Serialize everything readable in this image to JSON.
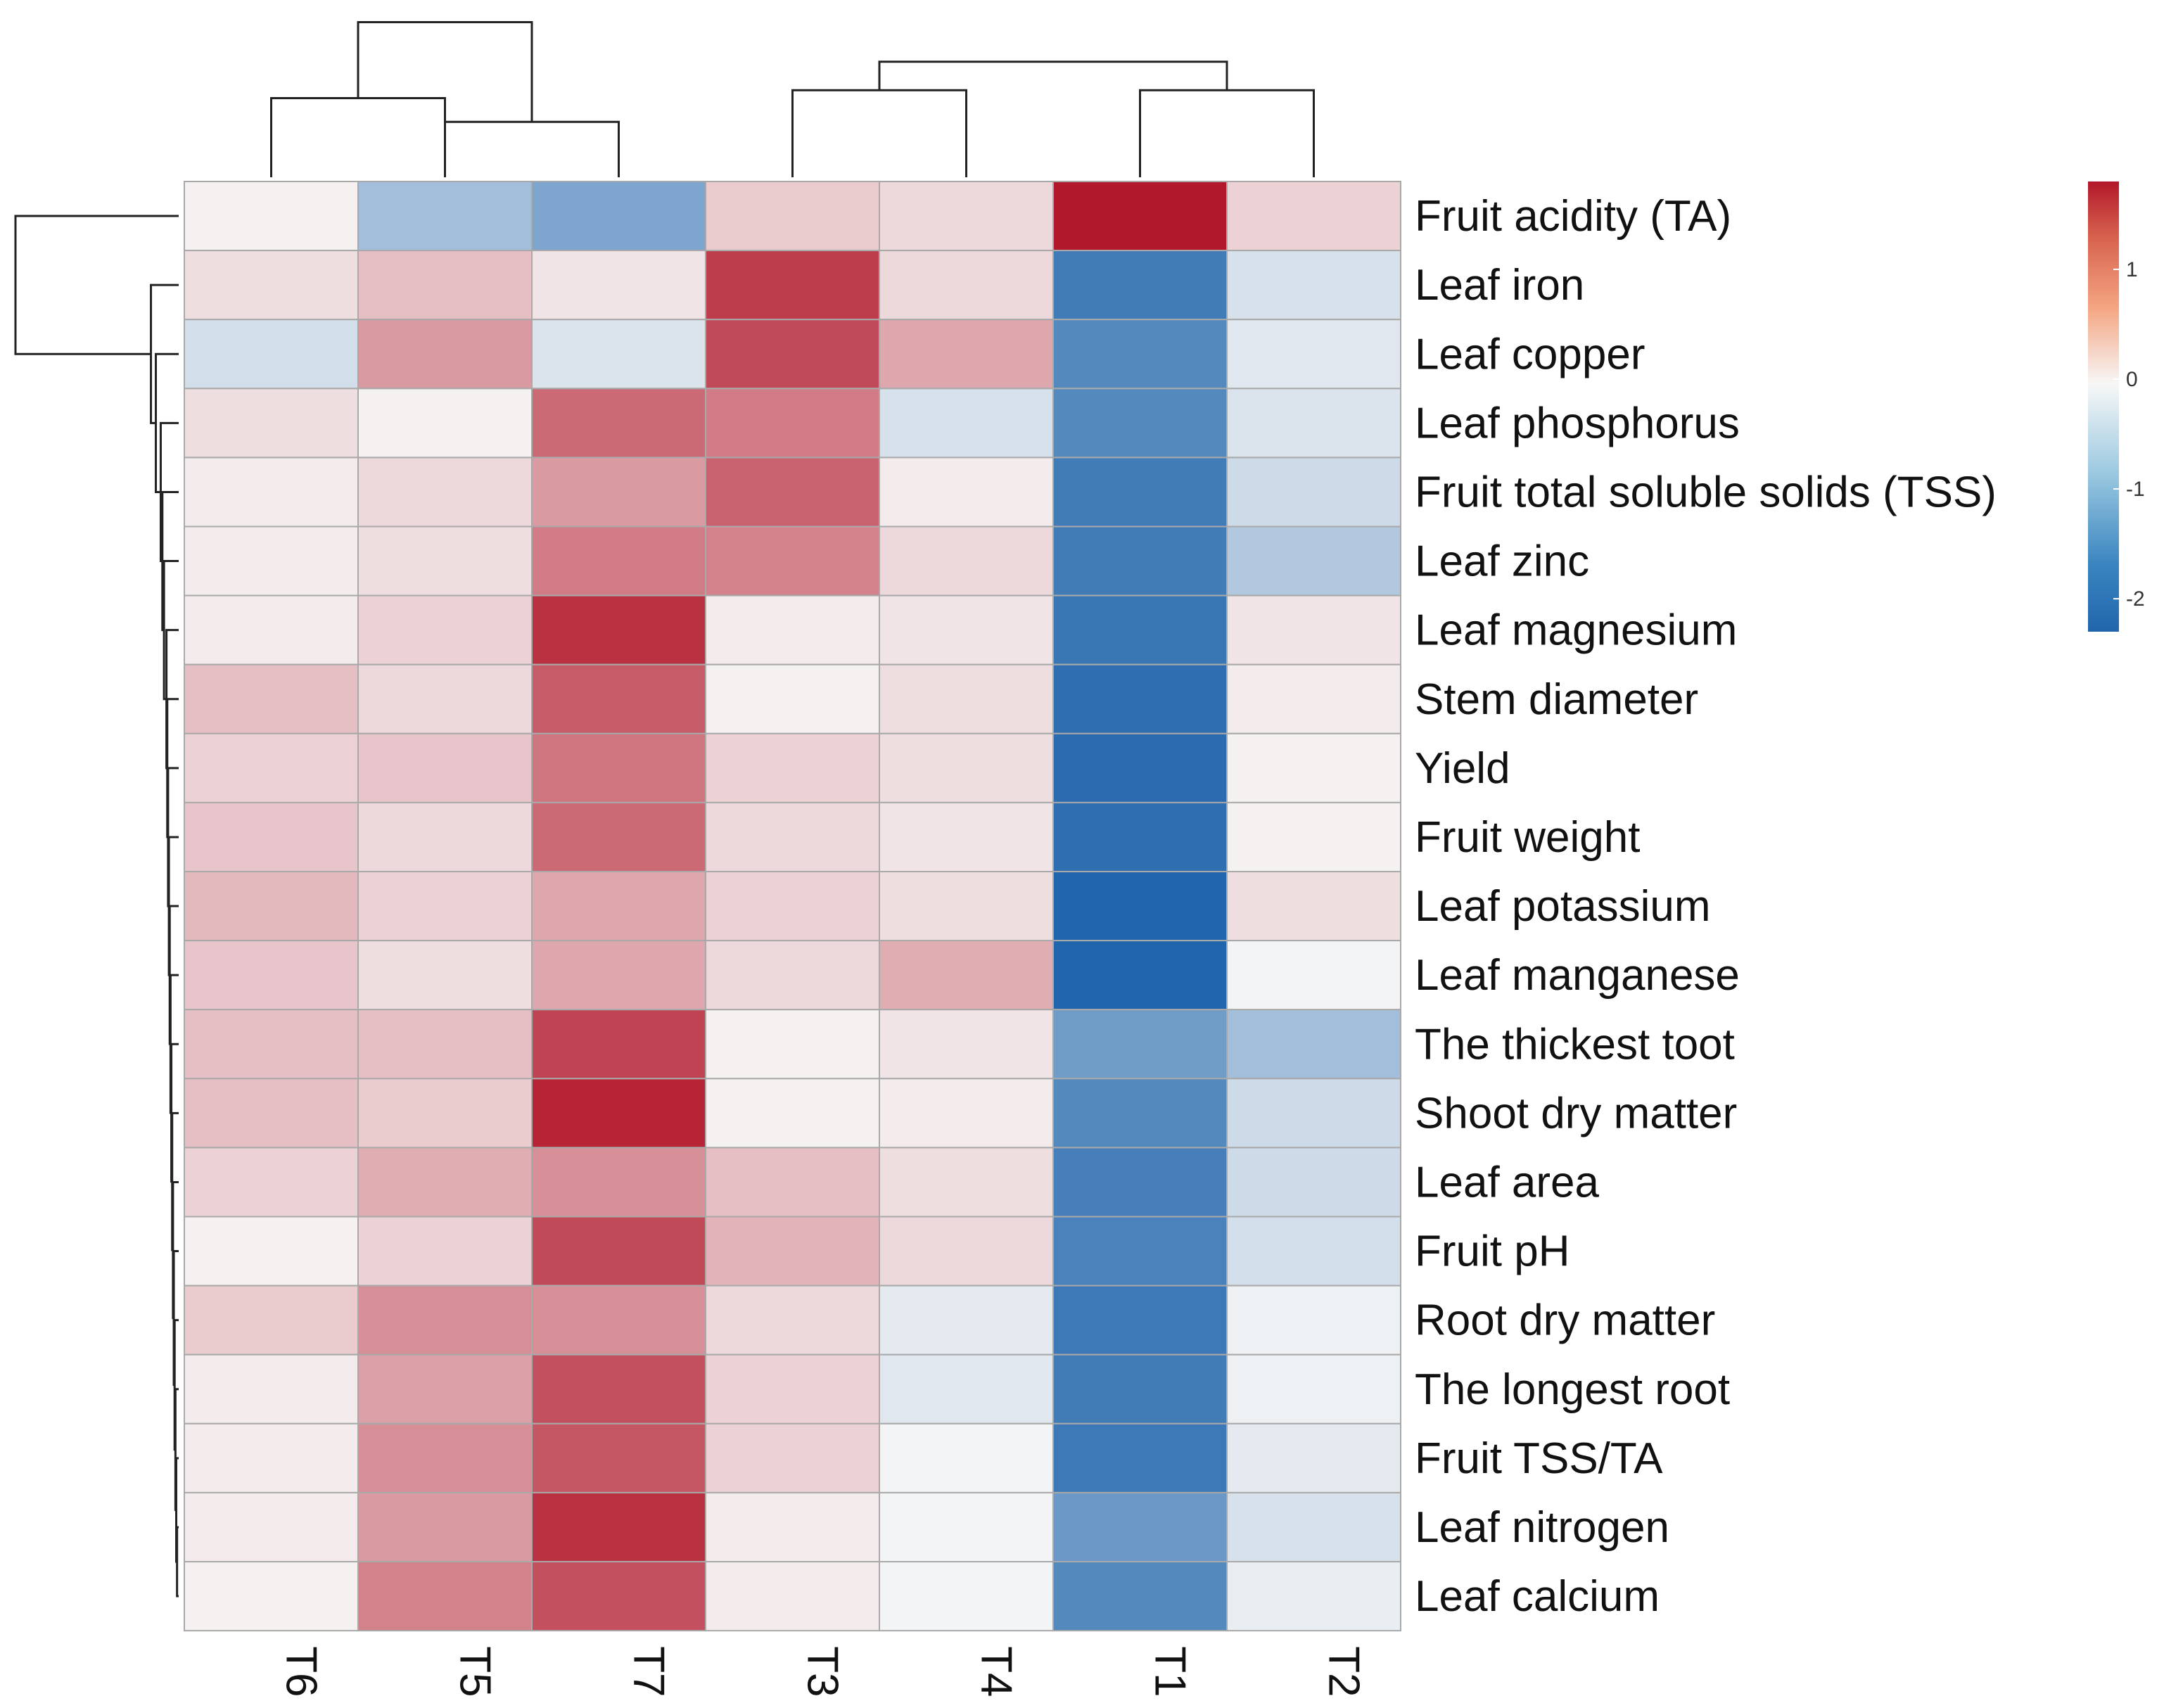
{
  "chart_data": {
    "type": "heatmap",
    "columns": [
      "T6",
      "T5",
      "T7",
      "T3",
      "T4",
      "T1",
      "T2"
    ],
    "rows": [
      "Fruit acidity (TA)",
      "Leaf iron",
      "Leaf copper",
      "Leaf phosphorus",
      "Fruit total soluble solids (TSS)",
      "Leaf zinc",
      "Leaf magnesium",
      "Stem diameter",
      "Yield",
      "Fruit weight",
      "Leaf potassium",
      "Leaf manganese",
      " The thickest toot",
      "Shoot dry matter",
      "Leaf area",
      "Fruit pH",
      "Root dry matter",
      "The longest root",
      "Fruit TSS/TA",
      "Leaf nitrogen",
      "Leaf calcium"
    ],
    "values": [
      [
        0.05,
        -0.9,
        -1.3,
        0.35,
        0.25,
        1.8,
        0.3
      ],
      [
        0.2,
        0.45,
        0.15,
        1.5,
        0.25,
        -1.95,
        -0.35
      ],
      [
        -0.4,
        0.75,
        -0.3,
        1.4,
        0.65,
        -1.75,
        -0.25
      ],
      [
        0.2,
        0.05,
        1.15,
        1.0,
        -0.35,
        -1.75,
        -0.3
      ],
      [
        0.1,
        0.25,
        0.75,
        1.2,
        0.1,
        -1.95,
        -0.45
      ],
      [
        0.1,
        0.2,
        1.0,
        0.95,
        0.25,
        -1.95,
        -0.75
      ],
      [
        0.1,
        0.3,
        1.6,
        0.1,
        0.15,
        -2.05,
        0.15
      ],
      [
        0.45,
        0.25,
        1.25,
        0.05,
        0.2,
        -2.15,
        0.1
      ],
      [
        0.3,
        0.4,
        1.05,
        0.3,
        0.2,
        -2.2,
        0.05
      ],
      [
        0.4,
        0.25,
        1.15,
        0.25,
        0.15,
        -2.15,
        0.05
      ],
      [
        0.5,
        0.3,
        0.65,
        0.3,
        0.2,
        -2.35,
        0.2
      ],
      [
        0.4,
        0.2,
        0.65,
        0.25,
        0.6,
        -2.3,
        -0.05
      ],
      [
        0.45,
        0.45,
        1.45,
        0.05,
        0.15,
        -1.45,
        -0.9
      ],
      [
        0.45,
        0.35,
        1.7,
        0.05,
        0.1,
        -1.75,
        -0.45
      ],
      [
        0.3,
        0.6,
        0.85,
        0.45,
        0.2,
        -1.9,
        -0.45
      ],
      [
        0.05,
        0.3,
        1.4,
        0.55,
        0.25,
        -1.85,
        -0.4
      ],
      [
        0.35,
        0.85,
        0.85,
        0.25,
        -0.2,
        -2.0,
        -0.1
      ],
      [
        0.1,
        0.7,
        1.35,
        0.3,
        -0.25,
        -1.95,
        -0.1
      ],
      [
        0.1,
        0.85,
        1.3,
        0.3,
        -0.05,
        -2.0,
        -0.2
      ],
      [
        0.1,
        0.75,
        1.6,
        0.1,
        -0.05,
        -1.5,
        -0.35
      ],
      [
        0.05,
        0.95,
        1.35,
        0.1,
        -0.05,
        -1.75,
        -0.15
      ]
    ],
    "col_dendrogram": {
      "leaves": 7,
      "merges": [
        [
          5,
          6,
          0.55
        ],
        [
          3,
          4,
          0.55
        ],
        [
          1,
          2,
          0.35
        ],
        [
          0,
          1,
          0.5
        ],
        [
          8,
          7,
          0.73
        ],
        [
          9,
          10,
          0.98
        ]
      ]
    },
    "row_dendrogram": {
      "leaves": 21,
      "merges": [
        [
          19,
          20,
          0.01
        ],
        [
          18,
          21,
          0.015
        ],
        [
          17,
          22,
          0.02
        ],
        [
          16,
          23,
          0.025
        ],
        [
          15,
          24,
          0.03
        ],
        [
          14,
          25,
          0.035
        ],
        [
          13,
          26,
          0.04
        ],
        [
          12,
          27,
          0.045
        ],
        [
          11,
          28,
          0.05
        ],
        [
          10,
          29,
          0.055
        ],
        [
          9,
          30,
          0.06
        ],
        [
          8,
          31,
          0.065
        ],
        [
          7,
          32,
          0.07
        ],
        [
          6,
          33,
          0.075
        ],
        [
          5,
          34,
          0.09
        ],
        [
          4,
          35,
          0.1
        ],
        [
          3,
          36,
          0.11
        ],
        [
          2,
          37,
          0.14
        ],
        [
          1,
          38,
          0.17
        ],
        [
          0,
          39,
          1.0
        ]
      ]
    },
    "colorbar": {
      "ticks": [
        1,
        0,
        -1,
        -2
      ],
      "range": [
        -2.3,
        1.8
      ],
      "colors": {
        "low": "#2166ac",
        "mid": "#f7f7f7",
        "high": "#b2182b"
      }
    }
  }
}
